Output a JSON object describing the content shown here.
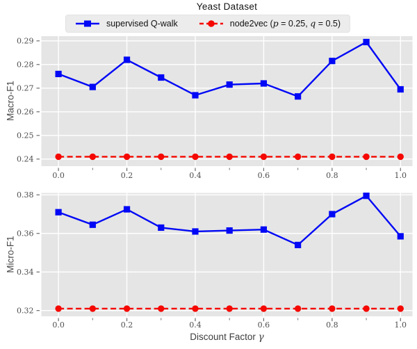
{
  "title": "Yeast Dataset",
  "legend": {
    "items": [
      {
        "label": "supervised Q-walk",
        "parts": [
          {
            "t": "supervised Q-walk",
            "it": false
          }
        ],
        "color": "#0008f5",
        "marker": "square",
        "line": "solid"
      },
      {
        "label": "node2vec (p = 0.25, q = 0.5)",
        "parts": [
          {
            "t": "node2vec (",
            "it": false
          },
          {
            "t": "p",
            "it": true
          },
          {
            "t": " = 0.25, ",
            "it": false
          },
          {
            "t": "q",
            "it": true
          },
          {
            "t": " = 0.5)",
            "it": false
          }
        ],
        "color": "#f50800",
        "marker": "circle",
        "line": "dashed"
      }
    ]
  },
  "xlabel": {
    "text": "Discount Factor",
    "symbol": "γ"
  },
  "colors": {
    "blue": "#0008f5",
    "red": "#f50800",
    "plot_bg": "#e5e5e5",
    "grid": "#ffffff",
    "tick_mark": "#6b6b6b",
    "tick_text": "#4d4d4d",
    "title_text": "#141414"
  },
  "chart_data": [
    {
      "type": "line",
      "title": "Yeast Dataset",
      "ylabel": "Macro-F1",
      "x": [
        0.0,
        0.1,
        0.2,
        0.3,
        0.4,
        0.5,
        0.6,
        0.7,
        0.8,
        0.9,
        1.0
      ],
      "series": [
        {
          "name": "supervised Q-walk",
          "color": "#0008f5",
          "marker": "square",
          "line": "solid",
          "values": [
            0.276,
            0.2705,
            0.282,
            0.2745,
            0.267,
            0.2715,
            0.272,
            0.2665,
            0.2815,
            0.2895,
            0.2695
          ]
        },
        {
          "name": "node2vec (p = 0.25, q = 0.5)",
          "color": "#f50800",
          "marker": "circle",
          "line": "dashed",
          "values": [
            0.241,
            0.241,
            0.241,
            0.241,
            0.241,
            0.241,
            0.241,
            0.241,
            0.241,
            0.241,
            0.241
          ]
        }
      ],
      "xticks": [
        0.0,
        0.2,
        0.4,
        0.6,
        0.8,
        1.0
      ],
      "xticks_minor": [
        0.1,
        0.3,
        0.5,
        0.7,
        0.9
      ],
      "yticks": [
        0.24,
        0.25,
        0.26,
        0.27,
        0.28,
        0.29
      ],
      "xlim": [
        -0.05,
        1.035
      ],
      "ylim": [
        0.237,
        0.292
      ],
      "grid": true,
      "legend_position": "upper center outside"
    },
    {
      "type": "line",
      "ylabel": "Micro-F1",
      "xlabel": "Discount Factor γ",
      "x": [
        0.0,
        0.1,
        0.2,
        0.3,
        0.4,
        0.5,
        0.6,
        0.7,
        0.8,
        0.9,
        1.0
      ],
      "series": [
        {
          "name": "supervised Q-walk",
          "color": "#0008f5",
          "marker": "square",
          "line": "solid",
          "values": [
            0.371,
            0.3645,
            0.3725,
            0.363,
            0.361,
            0.3615,
            0.362,
            0.354,
            0.37,
            0.3795,
            0.3585
          ]
        },
        {
          "name": "node2vec (p = 0.25, q = 0.5)",
          "color": "#f50800",
          "marker": "circle",
          "line": "dashed",
          "values": [
            0.321,
            0.321,
            0.321,
            0.321,
            0.321,
            0.321,
            0.321,
            0.321,
            0.321,
            0.321,
            0.321
          ]
        }
      ],
      "xticks": [
        0.0,
        0.2,
        0.4,
        0.6,
        0.8,
        1.0
      ],
      "xticks_minor": [
        0.1,
        0.3,
        0.5,
        0.7,
        0.9
      ],
      "yticks": [
        0.32,
        0.34,
        0.36,
        0.38
      ],
      "xlim": [
        -0.05,
        1.035
      ],
      "ylim": [
        0.317,
        0.381
      ],
      "grid": true
    }
  ]
}
